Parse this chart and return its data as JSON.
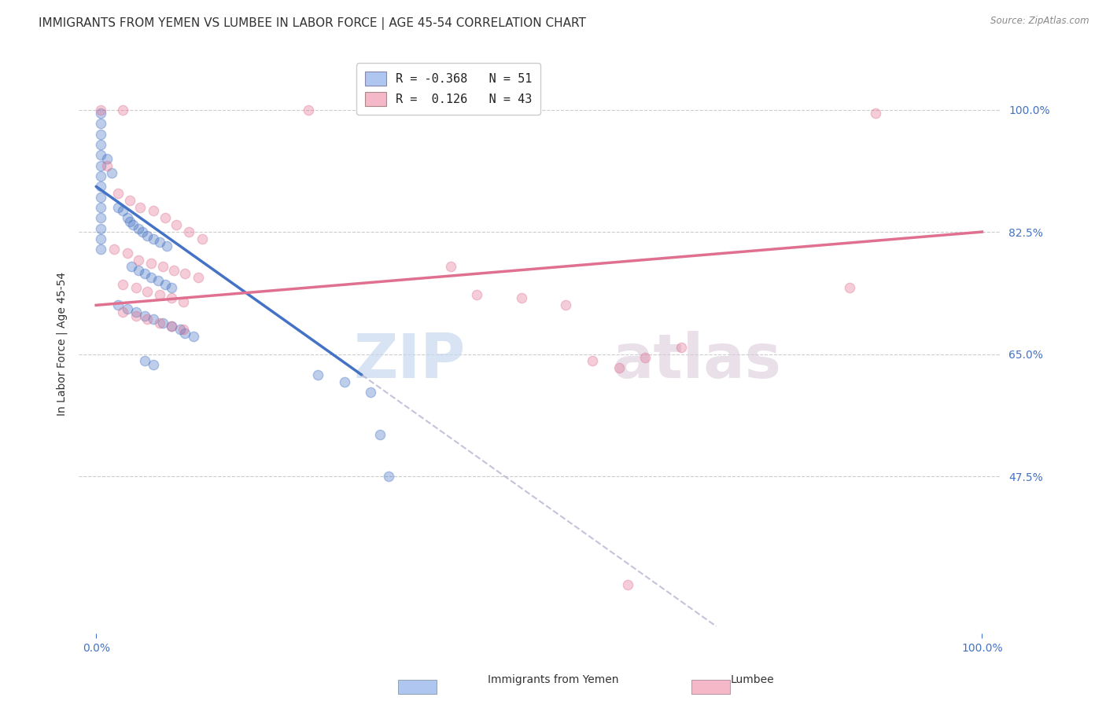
{
  "title": "IMMIGRANTS FROM YEMEN VS LUMBEE IN LABOR FORCE | AGE 45-54 CORRELATION CHART",
  "source": "Source: ZipAtlas.com",
  "ylabel": "In Labor Force | Age 45-54",
  "x_tick_labels": [
    "0.0%",
    "100.0%"
  ],
  "y_tick_labels": [
    "47.5%",
    "65.0%",
    "82.5%",
    "100.0%"
  ],
  "y_tick_values": [
    0.475,
    0.65,
    0.825,
    1.0
  ],
  "xlim": [
    -0.02,
    1.02
  ],
  "ylim": [
    0.25,
    1.08
  ],
  "legend_entries": [
    {
      "label": "R = -0.368   N = 51",
      "color": "#aec6f0"
    },
    {
      "label": "R =  0.126   N = 43",
      "color": "#f5b8c8"
    }
  ],
  "blue_scatter": [
    [
      0.005,
      0.995
    ],
    [
      0.005,
      0.98
    ],
    [
      0.005,
      0.965
    ],
    [
      0.005,
      0.95
    ],
    [
      0.005,
      0.935
    ],
    [
      0.005,
      0.92
    ],
    [
      0.005,
      0.905
    ],
    [
      0.005,
      0.89
    ],
    [
      0.005,
      0.875
    ],
    [
      0.005,
      0.86
    ],
    [
      0.005,
      0.845
    ],
    [
      0.005,
      0.83
    ],
    [
      0.005,
      0.815
    ],
    [
      0.005,
      0.8
    ],
    [
      0.012,
      0.93
    ],
    [
      0.018,
      0.91
    ],
    [
      0.025,
      0.86
    ],
    [
      0.03,
      0.855
    ],
    [
      0.035,
      0.845
    ],
    [
      0.038,
      0.84
    ],
    [
      0.042,
      0.835
    ],
    [
      0.048,
      0.83
    ],
    [
      0.052,
      0.825
    ],
    [
      0.058,
      0.82
    ],
    [
      0.065,
      0.815
    ],
    [
      0.072,
      0.81
    ],
    [
      0.08,
      0.805
    ],
    [
      0.04,
      0.775
    ],
    [
      0.048,
      0.77
    ],
    [
      0.055,
      0.765
    ],
    [
      0.062,
      0.76
    ],
    [
      0.07,
      0.755
    ],
    [
      0.078,
      0.75
    ],
    [
      0.085,
      0.745
    ],
    [
      0.025,
      0.72
    ],
    [
      0.035,
      0.715
    ],
    [
      0.045,
      0.71
    ],
    [
      0.055,
      0.705
    ],
    [
      0.065,
      0.7
    ],
    [
      0.075,
      0.695
    ],
    [
      0.085,
      0.69
    ],
    [
      0.095,
      0.685
    ],
    [
      0.1,
      0.68
    ],
    [
      0.11,
      0.675
    ],
    [
      0.055,
      0.64
    ],
    [
      0.065,
      0.635
    ],
    [
      0.25,
      0.62
    ],
    [
      0.28,
      0.61
    ],
    [
      0.31,
      0.595
    ],
    [
      0.32,
      0.535
    ],
    [
      0.33,
      0.475
    ]
  ],
  "pink_scatter": [
    [
      0.005,
      1.0
    ],
    [
      0.03,
      1.0
    ],
    [
      0.24,
      1.0
    ],
    [
      0.88,
      0.995
    ],
    [
      0.012,
      0.92
    ],
    [
      0.025,
      0.88
    ],
    [
      0.038,
      0.87
    ],
    [
      0.05,
      0.86
    ],
    [
      0.065,
      0.855
    ],
    [
      0.078,
      0.845
    ],
    [
      0.09,
      0.835
    ],
    [
      0.105,
      0.825
    ],
    [
      0.12,
      0.815
    ],
    [
      0.02,
      0.8
    ],
    [
      0.035,
      0.795
    ],
    [
      0.048,
      0.785
    ],
    [
      0.062,
      0.78
    ],
    [
      0.075,
      0.775
    ],
    [
      0.088,
      0.77
    ],
    [
      0.1,
      0.765
    ],
    [
      0.115,
      0.76
    ],
    [
      0.03,
      0.75
    ],
    [
      0.045,
      0.745
    ],
    [
      0.058,
      0.74
    ],
    [
      0.072,
      0.735
    ],
    [
      0.085,
      0.73
    ],
    [
      0.098,
      0.725
    ],
    [
      0.03,
      0.71
    ],
    [
      0.045,
      0.705
    ],
    [
      0.058,
      0.7
    ],
    [
      0.072,
      0.695
    ],
    [
      0.085,
      0.69
    ],
    [
      0.098,
      0.685
    ],
    [
      0.4,
      0.775
    ],
    [
      0.43,
      0.735
    ],
    [
      0.48,
      0.73
    ],
    [
      0.53,
      0.72
    ],
    [
      0.56,
      0.64
    ],
    [
      0.59,
      0.63
    ],
    [
      0.62,
      0.645
    ],
    [
      0.66,
      0.66
    ],
    [
      0.85,
      0.745
    ],
    [
      0.6,
      0.32
    ]
  ],
  "blue_line_solid": {
    "x0": 0.0,
    "y0": 0.89,
    "x1": 0.3,
    "y1": 0.62
  },
  "blue_line_dashed": {
    "x0": 0.3,
    "y0": 0.62,
    "x1": 0.7,
    "y1": 0.26
  },
  "pink_line": {
    "x0": 0.0,
    "y0": 0.72,
    "x1": 1.0,
    "y1": 0.825
  },
  "blue_color": "#4472c4",
  "pink_color": "#e07090",
  "trend_blue": "#4472c4",
  "trend_pink": "#e07090",
  "watermark_zip": "ZIP",
  "watermark_atlas": "atlas",
  "background_color": "#ffffff",
  "grid_color": "#cccccc",
  "title_fontsize": 11,
  "label_fontsize": 10,
  "tick_fontsize": 10,
  "scatter_size": 80,
  "scatter_alpha": 0.35
}
